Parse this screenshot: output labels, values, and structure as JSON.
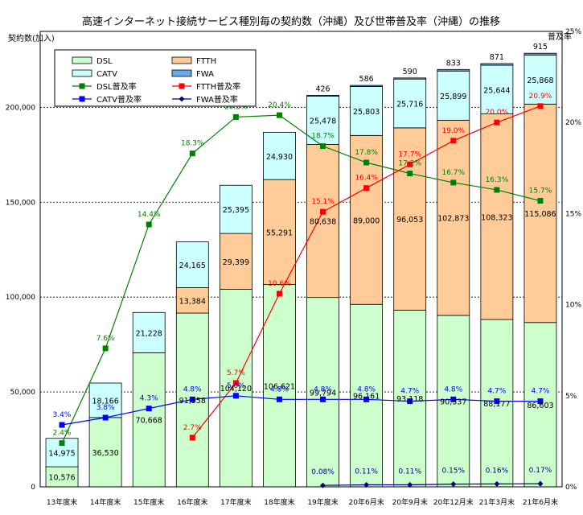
{
  "chart_data": {
    "type": "bar",
    "title": "高速インターネット接続サービス種別毎の契約数（沖縄）及び世帯普及率（沖縄）の推移",
    "ylabel": "契約数(加入)",
    "y2label": "普及率",
    "ylim": [
      0,
      240000
    ],
    "y2lim": [
      0,
      25
    ],
    "yticks": [
      "0",
      "50,000",
      "100,000",
      "150,000",
      "200,000"
    ],
    "y2ticks": [
      "0%",
      "5%",
      "10%",
      "15%",
      "20%",
      "25%"
    ],
    "grid": "horizontal dashed",
    "legend_position": "top-left",
    "categories": [
      "13年度末",
      "14年度末",
      "15年度末",
      "16年度末",
      "17年度末",
      "18年度末",
      "19年度末",
      "20年6月末",
      "20年9月末",
      "20年12月末",
      "21年3月末",
      "21年6月末"
    ],
    "series": [
      {
        "name": "DSL",
        "kind": "bar",
        "color": "#ccffcc",
        "values": [
          10576,
          36530,
          70668,
          91558,
          104120,
          106621,
          99794,
          96161,
          93118,
          90337,
          88177,
          86603
        ],
        "labels": [
          "10,576",
          "36,530",
          "70,668",
          "91,558",
          "104,120",
          "106,621",
          "99,794",
          "96,161",
          "93,118",
          "90,337",
          "88,177",
          "86,603"
        ]
      },
      {
        "name": "FTTH",
        "kind": "bar",
        "color": "#ffcc99",
        "values": [
          0,
          0,
          0,
          13384,
          29399,
          55291,
          80638,
          89000,
          96053,
          102873,
          108323,
          115086
        ],
        "labels": [
          "",
          "",
          "",
          "13,384",
          "29,399",
          "55,291",
          "80,638",
          "89,000",
          "96,053",
          "102,873",
          "108,323",
          "115,086"
        ]
      },
      {
        "name": "CATV",
        "kind": "bar",
        "color": "#ccffff",
        "values": [
          14975,
          18166,
          21228,
          24165,
          25395,
          24930,
          25478,
          25803,
          25716,
          25899,
          25644,
          25868
        ],
        "labels": [
          "14,975",
          "18,166",
          "21,228",
          "24,165",
          "25,395",
          "24,930",
          "25,478",
          "25,803",
          "25,716",
          "25,899",
          "25,644",
          "25,868"
        ]
      },
      {
        "name": "FWA",
        "kind": "bar",
        "color": "#66aaee",
        "values": [
          0,
          0,
          0,
          0,
          0,
          0,
          426,
          586,
          590,
          833,
          871,
          915
        ],
        "labels": [
          "",
          "",
          "",
          "",
          "",
          "",
          "426",
          "586",
          "590",
          "833",
          "871",
          "915"
        ]
      },
      {
        "name": "DSL普及率",
        "kind": "line",
        "color": "#008000",
        "marker": "square",
        "values": [
          2.4,
          7.6,
          14.4,
          18.3,
          20.3,
          20.4,
          18.7,
          17.8,
          17.2,
          16.7,
          16.3,
          15.7
        ],
        "labels": [
          "2.4%",
          "7.6%",
          "14.4%",
          "18.3%",
          "20.3%",
          "20.4%",
          "18.7%",
          "17.8%",
          "17.2%",
          "16.7%",
          "16.3%",
          "15.7%"
        ]
      },
      {
        "name": "FTTH普及率",
        "kind": "line",
        "color": "#ff0000",
        "marker": "square",
        "values": [
          null,
          null,
          null,
          2.7,
          5.7,
          10.6,
          15.1,
          16.4,
          17.7,
          19.0,
          20.0,
          20.9
        ],
        "labels": [
          "",
          "",
          "",
          "2.7%",
          "5.7%",
          "10.6%",
          "15.1%",
          "16.4%",
          "17.7%",
          "19.0%",
          "20.0%",
          "20.9%"
        ]
      },
      {
        "name": "CATV普及率",
        "kind": "line",
        "color": "#0000ff",
        "marker": "square",
        "values": [
          3.4,
          3.8,
          4.3,
          4.8,
          5.0,
          4.8,
          4.8,
          4.8,
          4.7,
          4.8,
          4.7,
          4.7
        ],
        "labels": [
          "3.4%",
          "3.8%",
          "4.3%",
          "4.8%",
          "5.0%",
          "4.8%",
          "4.8%",
          "4.8%",
          "4.7%",
          "4.8%",
          "4.7%",
          "4.7%"
        ]
      },
      {
        "name": "FWA普及率",
        "kind": "line",
        "color": "#000080",
        "marker": "diamond",
        "values": [
          null,
          null,
          null,
          null,
          null,
          null,
          0.08,
          0.11,
          0.11,
          0.15,
          0.16,
          0.17
        ],
        "labels": [
          "",
          "",
          "",
          "",
          "",
          "",
          "0.08%",
          "0.11%",
          "0.11%",
          "0.15%",
          "0.16%",
          "0.17%"
        ]
      }
    ]
  }
}
